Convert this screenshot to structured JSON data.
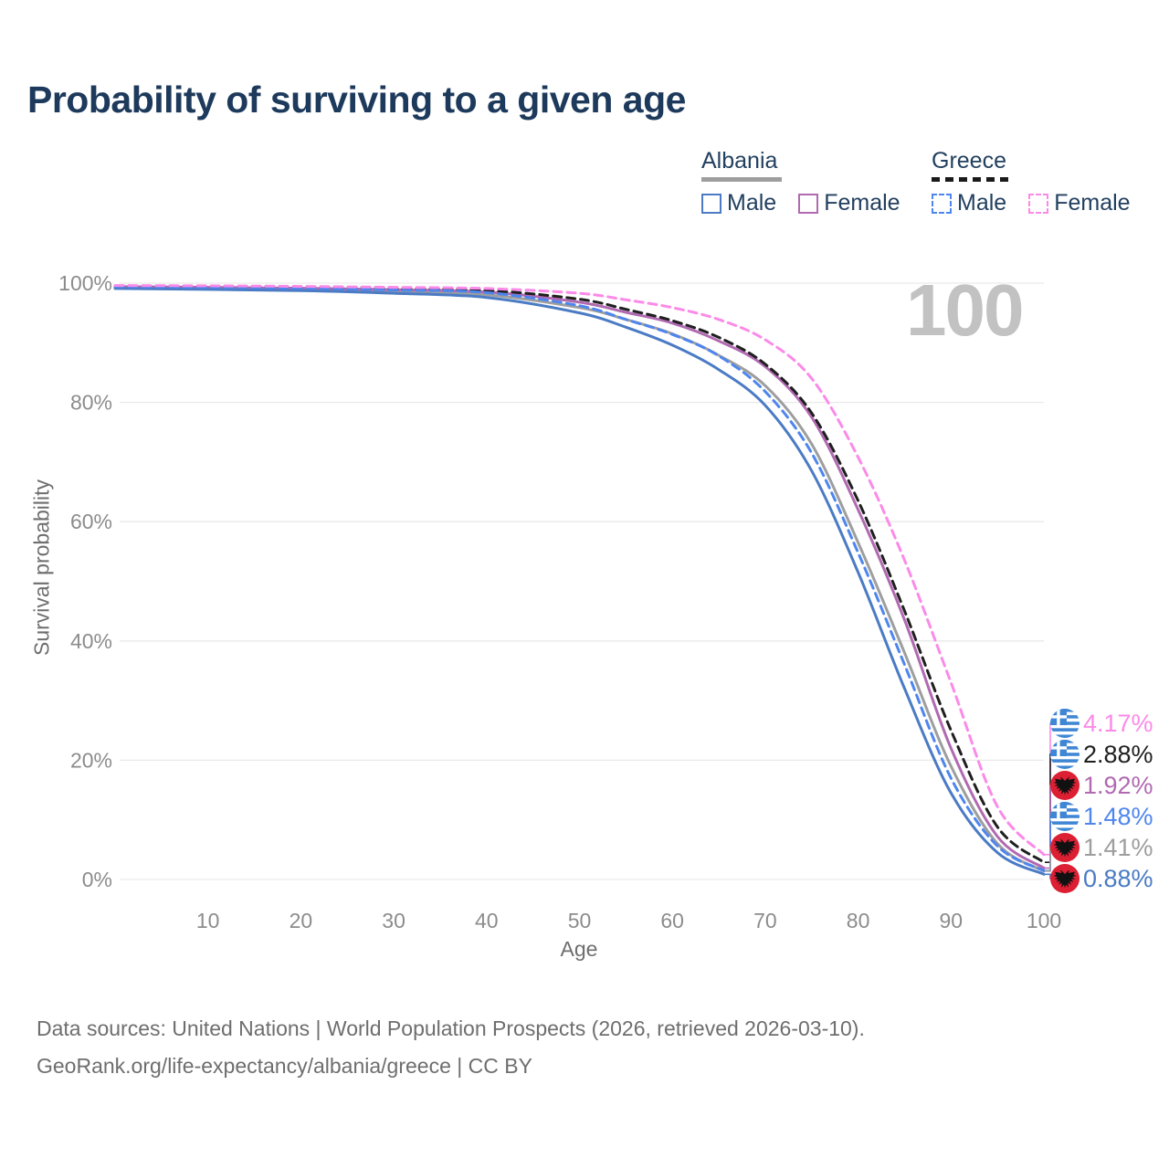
{
  "title": "Probability of surviving to a given age",
  "legend": {
    "groups": [
      {
        "label": "Albania",
        "line_style": "solid",
        "line_color": "#9e9e9e",
        "items": [
          {
            "label": "Male",
            "color": "#4a7bc4",
            "dash": false
          },
          {
            "label": "Female",
            "color": "#b16ab1",
            "dash": false
          }
        ]
      },
      {
        "label": "Greece",
        "line_style": "dashed",
        "line_color": "#1a1a1a",
        "items": [
          {
            "label": "Male",
            "color": "#4e86ee",
            "dash": true
          },
          {
            "label": "Female",
            "color": "#fb8ae8",
            "dash": true
          }
        ]
      }
    ]
  },
  "chart_data": {
    "type": "line",
    "title": "Probability of surviving to a given age",
    "xlabel": "Age",
    "ylabel": "Survival probability",
    "xlim": [
      0,
      100
    ],
    "ylim": [
      0,
      100
    ],
    "grid": "horizontal",
    "legend_position": "top-right",
    "x_ticks": [
      10,
      20,
      30,
      40,
      50,
      60,
      70,
      80,
      90,
      100
    ],
    "y_ticks": [
      {
        "value": 0,
        "label": "0%"
      },
      {
        "value": 20,
        "label": "20%"
      },
      {
        "value": 40,
        "label": "40%"
      },
      {
        "value": 60,
        "label": "60%"
      },
      {
        "value": 80,
        "label": "80%"
      },
      {
        "value": 100,
        "label": "100%"
      }
    ],
    "watermark": "100",
    "x": [
      0,
      10,
      20,
      30,
      40,
      50,
      55,
      60,
      65,
      70,
      75,
      80,
      85,
      90,
      95,
      100
    ],
    "series": [
      {
        "name": "Albania Both sexes",
        "country": "Albania",
        "sex": "Both",
        "color": "#9e9e9e",
        "dash": "solid",
        "values": [
          99.25,
          99.1,
          98.95,
          98.6,
          98.05,
          95.9,
          93.9,
          91.5,
          87.9,
          82.8,
          73.0,
          56.5,
          38.0,
          19.0,
          6.0,
          1.41
        ],
        "end_label": "1.41%"
      },
      {
        "name": "Albania Female",
        "country": "Albania",
        "sex": "Female",
        "color": "#b16ab1",
        "dash": "solid",
        "values": [
          99.4,
          99.3,
          99.15,
          98.9,
          98.5,
          96.8,
          95.1,
          93.3,
          90.3,
          86.0,
          77.5,
          62.0,
          43.5,
          22.0,
          7.2,
          1.92
        ],
        "end_label": "1.92%"
      },
      {
        "name": "Albania Male",
        "country": "Albania",
        "sex": "Male",
        "color": "#4a7bc4",
        "dash": "solid",
        "values": [
          99.1,
          98.95,
          98.75,
          98.3,
          97.6,
          95.0,
          92.6,
          89.6,
          85.5,
          79.5,
          68.5,
          51.5,
          32.0,
          14.5,
          4.5,
          0.88
        ],
        "end_label": "0.88%"
      },
      {
        "name": "Greece Both sexes",
        "country": "Greece",
        "sex": "Both",
        "color": "#1f1f1f",
        "dash": "dashed",
        "values": [
          99.5,
          99.42,
          99.3,
          99.1,
          98.8,
          97.3,
          95.6,
          93.7,
          90.9,
          86.4,
          78.2,
          63.5,
          45.0,
          25.0,
          8.8,
          2.88
        ],
        "end_label": "2.88%"
      },
      {
        "name": "Greece Male",
        "country": "Greece",
        "sex": "Male",
        "color": "#4e86ee",
        "dash": "dashed",
        "values": [
          99.4,
          99.3,
          99.15,
          98.85,
          98.4,
          96.2,
          93.9,
          91.4,
          87.8,
          81.8,
          71.5,
          54.8,
          36.0,
          17.0,
          5.6,
          1.48
        ],
        "end_label": "1.48%"
      },
      {
        "name": "Greece Female",
        "country": "Greece",
        "sex": "Female",
        "color": "#fb8ae8",
        "dash": "dashed",
        "values": [
          99.6,
          99.55,
          99.45,
          99.3,
          99.1,
          98.3,
          97.2,
          95.9,
          93.9,
          90.5,
          84.0,
          70.8,
          53.5,
          33.0,
          12.2,
          4.17
        ],
        "end_label": "4.17%"
      }
    ],
    "end_labels": [
      {
        "label": "4.17%",
        "value": 4.17,
        "flag": "greece",
        "color": "#fb8ae8"
      },
      {
        "label": "2.88%",
        "value": 2.88,
        "flag": "greece",
        "color": "#1f1f1f"
      },
      {
        "label": "1.92%",
        "value": 1.92,
        "flag": "albania",
        "color": "#b16ab1"
      },
      {
        "label": "1.48%",
        "value": 1.48,
        "flag": "greece",
        "color": "#4e86ee"
      },
      {
        "label": "1.41%",
        "value": 1.41,
        "flag": "albania",
        "color": "#9e9e9e"
      },
      {
        "label": "0.88%",
        "value": 0.88,
        "flag": "albania",
        "color": "#4a7bc4"
      }
    ],
    "flag_colors": {
      "greece_blue": "#3f86d4",
      "albania_red": "#dc1f33",
      "eagle_black": "#111111"
    }
  },
  "footer": {
    "line1": "Data sources: United Nations | World Population Prospects (2026, retrieved 2026-03-10).",
    "line2": "GeoRank.org/life-expectancy/albania/greece | CC BY"
  }
}
